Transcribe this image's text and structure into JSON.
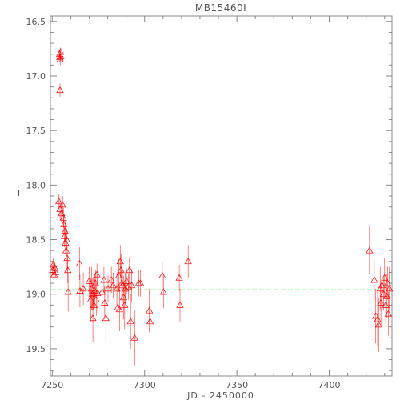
{
  "chart_data": {
    "type": "scatter",
    "title": "MB15460I",
    "xlabel": "JD - 2450000",
    "ylabel": "I",
    "xlim": [
      7249,
      7434
    ],
    "ylim": [
      19.75,
      16.45
    ],
    "y_inverted": true,
    "grid": false,
    "x_ticks": [
      7250,
      7300,
      7350,
      7400
    ],
    "y_ticks": [
      16.5,
      17.0,
      17.5,
      18.0,
      18.5,
      19.0,
      19.5
    ],
    "x_tick_labels": [
      "7250",
      "7300",
      "7350",
      "7400"
    ],
    "y_tick_labels": [
      "16.5",
      "17.0",
      "17.5",
      "18.0",
      "18.5",
      "19.0",
      "19.5"
    ],
    "colors": {
      "points": "#ff0000",
      "baseline": "#66ff66",
      "axes": "#888888"
    },
    "baseline": {
      "y": 18.96,
      "style": "dashed"
    },
    "series": [
      {
        "marker": "triangle",
        "points": [
          [
            7250.2,
            18.78,
            0.05
          ],
          [
            7250.6,
            18.73,
            0.06
          ],
          [
            7251.0,
            18.82,
            0.05
          ],
          [
            7251.4,
            18.76,
            0.06
          ],
          [
            7251.8,
            18.8,
            0.05
          ],
          [
            7254.0,
            16.8,
            0.04
          ],
          [
            7254.1,
            16.83,
            0.04
          ],
          [
            7254.3,
            16.85,
            0.05
          ],
          [
            7254.5,
            16.78,
            0.04
          ],
          [
            7254.6,
            16.82,
            0.04
          ],
          [
            7254.2,
            17.13,
            0.06
          ],
          [
            7253.6,
            18.15,
            0.07
          ],
          [
            7254.2,
            18.22,
            0.08
          ],
          [
            7255.0,
            18.26,
            0.08
          ],
          [
            7255.6,
            18.18,
            0.08
          ],
          [
            7256.0,
            18.3,
            0.09
          ],
          [
            7256.3,
            18.36,
            0.09
          ],
          [
            7256.6,
            18.47,
            0.1
          ],
          [
            7256.9,
            18.42,
            0.1
          ],
          [
            7257.2,
            18.53,
            0.1
          ],
          [
            7257.5,
            18.6,
            0.1
          ],
          [
            7257.8,
            18.5,
            0.1
          ],
          [
            7258.1,
            18.67,
            0.12
          ],
          [
            7258.4,
            18.78,
            0.12
          ],
          [
            7258.6,
            18.98,
            0.18
          ],
          [
            7264.8,
            18.72,
            0.15
          ],
          [
            7265.0,
            18.97,
            0.15
          ],
          [
            7266.8,
            18.95,
            0.15
          ],
          [
            7270.0,
            18.88,
            0.13
          ],
          [
            7270.8,
            19.05,
            0.2
          ],
          [
            7271.3,
            18.95,
            0.2
          ],
          [
            7271.6,
            19.0,
            0.15
          ],
          [
            7272.0,
            19.22,
            0.22
          ],
          [
            7272.3,
            18.99,
            0.15
          ],
          [
            7272.6,
            19.1,
            0.15
          ],
          [
            7273.0,
            18.97,
            0.15
          ],
          [
            7273.4,
            18.9,
            0.12
          ],
          [
            7273.8,
            19.05,
            0.15
          ],
          [
            7274.2,
            18.82,
            0.1
          ],
          [
            7274.6,
            18.99,
            0.18
          ],
          [
            7277.0,
            18.98,
            0.2
          ],
          [
            7278.0,
            18.87,
            0.12
          ],
          [
            7278.4,
            19.08,
            0.15
          ],
          [
            7279.0,
            19.22,
            0.22
          ],
          [
            7280.2,
            18.95,
            0.12
          ],
          [
            7282.0,
            18.87,
            0.12
          ],
          [
            7283.0,
            18.92,
            0.12
          ],
          [
            7285.0,
            18.95,
            0.15
          ],
          [
            7285.5,
            19.12,
            0.2
          ],
          [
            7286.0,
            18.83,
            0.15
          ],
          [
            7286.4,
            19.14,
            0.2
          ],
          [
            7286.8,
            18.7,
            0.15
          ],
          [
            7287.2,
            18.78,
            0.15
          ],
          [
            7287.6,
            18.9,
            0.15
          ],
          [
            7288.0,
            18.92,
            0.15
          ],
          [
            7288.6,
            19.03,
            0.2
          ],
          [
            7289.2,
            19.1,
            0.22
          ],
          [
            7289.6,
            18.95,
            0.15
          ],
          [
            7290.2,
            18.88,
            0.12
          ],
          [
            7291.2,
            18.93,
            0.12
          ],
          [
            7291.8,
            18.78,
            0.12
          ],
          [
            7292.4,
            19.25,
            0.25
          ],
          [
            7293.0,
            18.92,
            0.15
          ],
          [
            7294.6,
            19.4,
            0.25
          ],
          [
            7296.8,
            18.9,
            0.12
          ],
          [
            7297.8,
            18.9,
            0.12
          ],
          [
            7302.6,
            19.15,
            0.2
          ],
          [
            7303.0,
            19.25,
            0.2
          ],
          [
            7309.6,
            18.83,
            0.12
          ],
          [
            7310.2,
            18.98,
            0.15
          ],
          [
            7318.8,
            18.85,
            0.12
          ],
          [
            7319.2,
            19.1,
            0.15
          ],
          [
            7323.6,
            18.7,
            0.15
          ],
          [
            7421.8,
            18.6,
            0.22
          ],
          [
            7424.4,
            18.87,
            0.18
          ],
          [
            7425.2,
            19.2,
            0.25
          ],
          [
            7426.2,
            19.23,
            0.25
          ],
          [
            7426.8,
            19.28,
            0.25
          ],
          [
            7427.6,
            18.95,
            0.2
          ],
          [
            7428.0,
            19.08,
            0.2
          ],
          [
            7428.6,
            18.92,
            0.18
          ],
          [
            7429.4,
            19.0,
            0.15
          ],
          [
            7430.0,
            18.85,
            0.18
          ],
          [
            7430.6,
            19.1,
            0.2
          ],
          [
            7431.2,
            19.02,
            0.2
          ],
          [
            7431.6,
            18.9,
            0.15
          ],
          [
            7432.0,
            19.18,
            0.2
          ],
          [
            7432.6,
            18.95,
            0.2
          ]
        ]
      }
    ]
  }
}
